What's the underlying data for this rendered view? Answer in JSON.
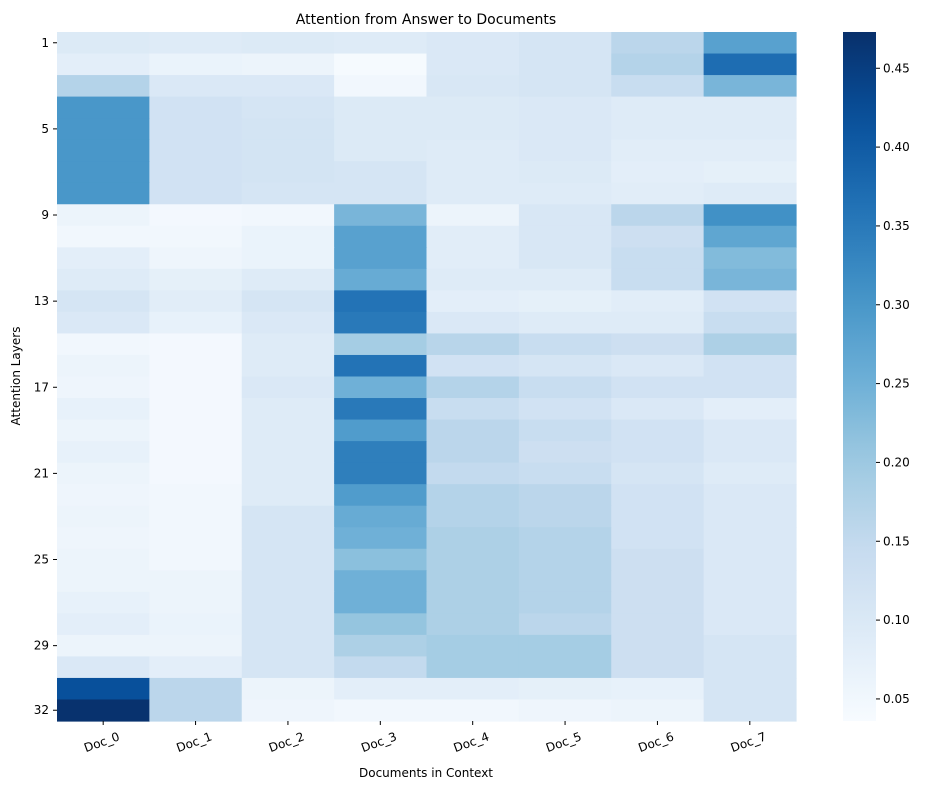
{
  "chart_data": {
    "type": "heatmap",
    "title": "Attention from Answer to Documents",
    "xlabel": "Documents in Context",
    "ylabel": "Attention Layers",
    "x_categories": [
      "Doc_0",
      "Doc_1",
      "Doc_2",
      "Doc_3",
      "Doc_4",
      "Doc_5",
      "Doc_6",
      "Doc_7"
    ],
    "y_categories": [
      1,
      2,
      3,
      4,
      5,
      6,
      7,
      8,
      9,
      10,
      11,
      12,
      13,
      14,
      15,
      16,
      17,
      18,
      19,
      20,
      21,
      22,
      23,
      24,
      25,
      26,
      27,
      28,
      29,
      30,
      31,
      32
    ],
    "y_tick_labels": [
      "1",
      "5",
      "9",
      "13",
      "17",
      "21",
      "25",
      "29",
      "32"
    ],
    "y_tick_layers": [
      1,
      5,
      9,
      13,
      17,
      21,
      25,
      29,
      32
    ],
    "colormap": "Blues",
    "colorbar": {
      "vmin": 0.036,
      "vmax": 0.473,
      "ticks": [
        0.05,
        0.1,
        0.15,
        0.2,
        0.25,
        0.3,
        0.35,
        0.4,
        0.45
      ],
      "tick_labels": [
        "0.05",
        "0.10",
        "0.15",
        "0.20",
        "0.25",
        "0.30",
        "0.35",
        "0.40",
        "0.45"
      ]
    },
    "values": [
      [
        0.095,
        0.09,
        0.095,
        0.09,
        0.1,
        0.11,
        0.16,
        0.28
      ],
      [
        0.08,
        0.065,
        0.06,
        0.04,
        0.1,
        0.11,
        0.17,
        0.37
      ],
      [
        0.17,
        0.1,
        0.1,
        0.05,
        0.105,
        0.11,
        0.14,
        0.24
      ],
      [
        0.3,
        0.12,
        0.11,
        0.095,
        0.095,
        0.1,
        0.09,
        0.09
      ],
      [
        0.3,
        0.12,
        0.115,
        0.095,
        0.095,
        0.1,
        0.09,
        0.09
      ],
      [
        0.3,
        0.12,
        0.115,
        0.095,
        0.09,
        0.1,
        0.085,
        0.085
      ],
      [
        0.3,
        0.12,
        0.115,
        0.11,
        0.09,
        0.095,
        0.08,
        0.075
      ],
      [
        0.3,
        0.12,
        0.11,
        0.11,
        0.09,
        0.09,
        0.085,
        0.09
      ],
      [
        0.06,
        0.045,
        0.05,
        0.24,
        0.06,
        0.105,
        0.16,
        0.31
      ],
      [
        0.05,
        0.05,
        0.065,
        0.28,
        0.085,
        0.105,
        0.13,
        0.27
      ],
      [
        0.08,
        0.055,
        0.065,
        0.28,
        0.085,
        0.105,
        0.14,
        0.23
      ],
      [
        0.09,
        0.075,
        0.09,
        0.26,
        0.09,
        0.09,
        0.14,
        0.24
      ],
      [
        0.11,
        0.085,
        0.11,
        0.36,
        0.08,
        0.075,
        0.085,
        0.12
      ],
      [
        0.1,
        0.07,
        0.1,
        0.35,
        0.1,
        0.09,
        0.09,
        0.14
      ],
      [
        0.05,
        0.045,
        0.09,
        0.19,
        0.165,
        0.14,
        0.13,
        0.18
      ],
      [
        0.06,
        0.045,
        0.09,
        0.36,
        0.12,
        0.11,
        0.1,
        0.12
      ],
      [
        0.055,
        0.045,
        0.1,
        0.25,
        0.17,
        0.14,
        0.12,
        0.12
      ],
      [
        0.07,
        0.045,
        0.09,
        0.35,
        0.14,
        0.12,
        0.1,
        0.08
      ],
      [
        0.06,
        0.045,
        0.09,
        0.29,
        0.16,
        0.14,
        0.12,
        0.1
      ],
      [
        0.07,
        0.045,
        0.09,
        0.34,
        0.16,
        0.13,
        0.12,
        0.1
      ],
      [
        0.06,
        0.045,
        0.09,
        0.34,
        0.15,
        0.14,
        0.11,
        0.09
      ],
      [
        0.055,
        0.05,
        0.09,
        0.29,
        0.17,
        0.16,
        0.12,
        0.1
      ],
      [
        0.06,
        0.05,
        0.11,
        0.26,
        0.17,
        0.16,
        0.12,
        0.1
      ],
      [
        0.055,
        0.05,
        0.11,
        0.25,
        0.18,
        0.17,
        0.12,
        0.1
      ],
      [
        0.06,
        0.05,
        0.11,
        0.22,
        0.18,
        0.17,
        0.13,
        0.1
      ],
      [
        0.06,
        0.06,
        0.11,
        0.25,
        0.18,
        0.17,
        0.13,
        0.1
      ],
      [
        0.07,
        0.06,
        0.11,
        0.25,
        0.18,
        0.17,
        0.13,
        0.1
      ],
      [
        0.08,
        0.065,
        0.11,
        0.21,
        0.18,
        0.16,
        0.13,
        0.1
      ],
      [
        0.06,
        0.06,
        0.11,
        0.18,
        0.19,
        0.19,
        0.13,
        0.11
      ],
      [
        0.1,
        0.08,
        0.11,
        0.15,
        0.19,
        0.19,
        0.13,
        0.11
      ],
      [
        0.42,
        0.16,
        0.06,
        0.08,
        0.08,
        0.075,
        0.07,
        0.11
      ],
      [
        0.47,
        0.16,
        0.055,
        0.05,
        0.05,
        0.055,
        0.06,
        0.11
      ]
    ]
  }
}
